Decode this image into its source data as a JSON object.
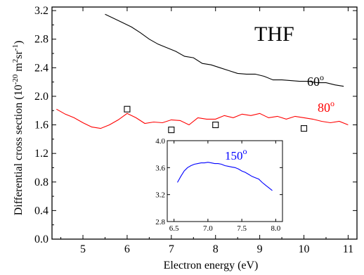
{
  "chart_data": [
    {
      "type": "line",
      "title": "",
      "xlabel": "Electron energy (eV)",
      "ylabel": "Differential cross section (10-20 m2sr-1)",
      "xlim": [
        4.3,
        11.2
      ],
      "ylim": [
        0.0,
        3.25
      ],
      "xticks": [
        5,
        6,
        7,
        8,
        9,
        10,
        11
      ],
      "yticks": [
        0.0,
        0.4,
        0.8,
        1.2,
        1.6,
        2.0,
        2.4,
        2.8,
        3.2
      ],
      "ytick_labels": [
        "0.0",
        "0.4",
        "0.8",
        "1.2",
        "1.6",
        "2.0",
        "2.4",
        "2.8",
        "3.2"
      ],
      "grid": false,
      "annotations": [
        {
          "text": "THF",
          "color": "#000000"
        },
        {
          "text": "60°",
          "color": "#000000"
        },
        {
          "text": "80°",
          "color": "#ff0000"
        }
      ],
      "series": [
        {
          "name": "60°",
          "color": "#000000",
          "marker": "none",
          "x": [
            5.5,
            5.7,
            5.9,
            6.1,
            6.3,
            6.5,
            6.7,
            6.9,
            7.1,
            7.3,
            7.5,
            7.7,
            7.9,
            8.1,
            8.3,
            8.5,
            8.7,
            8.9,
            9.1,
            9.3,
            9.5,
            9.7,
            9.9,
            10.1,
            10.3,
            10.5,
            10.7,
            10.9
          ],
          "y": [
            3.15,
            3.09,
            3.03,
            2.97,
            2.89,
            2.8,
            2.73,
            2.68,
            2.63,
            2.56,
            2.54,
            2.46,
            2.44,
            2.4,
            2.36,
            2.32,
            2.31,
            2.31,
            2.28,
            2.23,
            2.23,
            2.22,
            2.21,
            2.21,
            2.19,
            2.19,
            2.16,
            2.14
          ]
        },
        {
          "name": "80°",
          "color": "#ff0000",
          "marker": "none",
          "x": [
            4.4,
            4.6,
            4.8,
            5.0,
            5.2,
            5.4,
            5.6,
            5.8,
            6.0,
            6.2,
            6.4,
            6.6,
            6.8,
            7.0,
            7.2,
            7.4,
            7.6,
            7.8,
            8.0,
            8.2,
            8.4,
            8.6,
            8.8,
            9.0,
            9.2,
            9.4,
            9.6,
            9.8,
            10.0,
            10.2,
            10.4,
            10.6,
            10.8,
            11.0
          ],
          "y": [
            1.82,
            1.75,
            1.7,
            1.63,
            1.57,
            1.55,
            1.6,
            1.67,
            1.76,
            1.7,
            1.62,
            1.64,
            1.63,
            1.67,
            1.66,
            1.6,
            1.7,
            1.68,
            1.68,
            1.73,
            1.7,
            1.75,
            1.73,
            1.76,
            1.7,
            1.72,
            1.68,
            1.72,
            1.7,
            1.68,
            1.65,
            1.63,
            1.65,
            1.6
          ]
        },
        {
          "name": "",
          "color": "#000000",
          "marker": "open-square",
          "line": "none",
          "x": [
            6.0,
            7.0,
            8.0,
            10.0
          ],
          "y": [
            1.82,
            1.53,
            1.6,
            1.55
          ]
        }
      ]
    },
    {
      "type": "line",
      "title": "",
      "xlabel": "",
      "ylabel": "",
      "xlim": [
        6.4,
        8.1
      ],
      "ylim": [
        2.8,
        4.0
      ],
      "xticks": [
        6.5,
        7.0,
        7.5,
        8.0
      ],
      "yticks": [
        2.8,
        3.2,
        3.6,
        4.0
      ],
      "grid": false,
      "annotations": [
        {
          "text": "150°",
          "color": "#0000ff"
        }
      ],
      "series": [
        {
          "name": "150°",
          "color": "#0000ff",
          "marker": "none",
          "x": [
            6.55,
            6.6,
            6.65,
            6.7,
            6.75,
            6.8,
            6.85,
            6.9,
            6.95,
            7.0,
            7.05,
            7.1,
            7.15,
            7.2,
            7.25,
            7.3,
            7.35,
            7.4,
            7.45,
            7.5,
            7.55,
            7.6,
            7.65,
            7.7,
            7.75,
            7.8,
            7.85,
            7.9,
            7.95
          ],
          "y": [
            3.38,
            3.47,
            3.55,
            3.6,
            3.63,
            3.65,
            3.66,
            3.67,
            3.67,
            3.68,
            3.67,
            3.66,
            3.66,
            3.65,
            3.63,
            3.62,
            3.61,
            3.6,
            3.58,
            3.55,
            3.53,
            3.5,
            3.47,
            3.45,
            3.43,
            3.38,
            3.34,
            3.3,
            3.26
          ]
        }
      ]
    }
  ]
}
